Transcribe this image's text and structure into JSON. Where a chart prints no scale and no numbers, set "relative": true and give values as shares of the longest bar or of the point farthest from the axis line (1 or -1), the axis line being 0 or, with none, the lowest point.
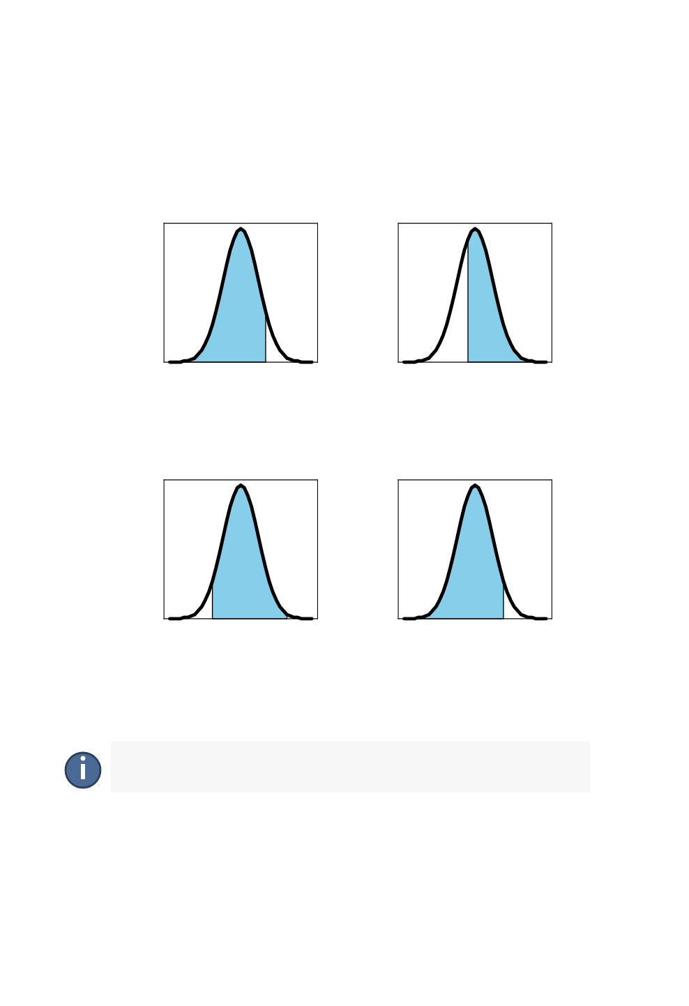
{
  "chart_data": [
    {
      "type": "line",
      "relative": true,
      "categories": [
        null,
        null,
        null,
        null,
        null,
        null,
        null,
        null,
        null,
        null,
        null,
        null,
        null,
        null,
        null,
        null,
        null,
        null,
        null,
        null,
        null,
        null,
        null,
        null,
        null,
        null,
        null,
        null,
        null,
        null,
        null,
        null,
        null,
        null,
        null,
        null,
        null,
        null,
        null,
        null,
        null
      ],
      "series": [
        {
          "color": "#000000",
          "values": [
            0,
            0,
            0,
            0,
            0.01,
            0.01,
            0.02,
            0.03,
            0.06,
            0.09,
            0.14,
            0.2,
            0.28,
            0.38,
            0.49,
            0.61,
            0.73,
            0.84,
            0.92,
            0.98,
            1,
            0.98,
            0.92,
            0.84,
            0.73,
            0.61,
            0.49,
            0.38,
            0.28,
            0.2,
            0.14,
            0.09,
            0.06,
            0.03,
            0.02,
            0.01,
            0.01,
            0,
            0,
            0,
            0
          ],
          "lower": [
            0,
            0,
            0,
            0,
            0,
            0,
            0,
            0,
            0,
            0,
            0,
            0,
            0,
            0,
            0,
            0,
            0,
            0,
            0,
            0,
            0,
            0,
            0,
            0,
            0,
            0,
            0,
            0,
            null,
            null,
            null,
            null,
            null,
            null,
            null,
            null,
            null,
            null,
            null,
            null,
            null
          ],
          "upper": [
            0,
            0,
            0,
            0,
            0.01,
            0.01,
            0.02,
            0.03,
            0.06,
            0.09,
            0.14,
            0.2,
            0.28,
            0.38,
            0.49,
            0.61,
            0.73,
            0.84,
            0.92,
            0.98,
            1,
            0.98,
            0.92,
            0.84,
            0.73,
            0.61,
            0.49,
            0.38,
            null,
            null,
            null,
            null,
            null,
            null,
            null,
            null,
            null,
            null,
            null,
            null,
            null
          ]
        }
      ]
    },
    {
      "type": "line",
      "relative": true,
      "categories": [
        null,
        null,
        null,
        null,
        null,
        null,
        null,
        null,
        null,
        null,
        null,
        null,
        null,
        null,
        null,
        null,
        null,
        null,
        null,
        null,
        null,
        null,
        null,
        null,
        null,
        null,
        null,
        null,
        null,
        null,
        null,
        null,
        null,
        null,
        null,
        null,
        null,
        null,
        null,
        null,
        null
      ],
      "series": [
        {
          "color": "#000000",
          "values": [
            0,
            0,
            0,
            0,
            0.01,
            0.01,
            0.02,
            0.03,
            0.06,
            0.09,
            0.14,
            0.2,
            0.28,
            0.38,
            0.49,
            0.61,
            0.73,
            0.84,
            0.92,
            0.98,
            1,
            0.98,
            0.92,
            0.84,
            0.73,
            0.61,
            0.49,
            0.38,
            0.28,
            0.2,
            0.14,
            0.09,
            0.06,
            0.03,
            0.02,
            0.01,
            0.01,
            0,
            0,
            0,
            0
          ],
          "lower": [
            null,
            null,
            null,
            null,
            null,
            null,
            null,
            null,
            null,
            null,
            null,
            null,
            null,
            null,
            null,
            null,
            null,
            null,
            0,
            0,
            0,
            0,
            0,
            0,
            0,
            0,
            0,
            0,
            0,
            0,
            0,
            0,
            0,
            0,
            0,
            0,
            0,
            0,
            0,
            0,
            0
          ],
          "upper": [
            null,
            null,
            null,
            null,
            null,
            null,
            null,
            null,
            null,
            null,
            null,
            null,
            null,
            null,
            null,
            null,
            null,
            null,
            0.92,
            0.98,
            1,
            0.98,
            0.92,
            0.84,
            0.73,
            0.61,
            0.49,
            0.38,
            0.28,
            0.2,
            0.14,
            0.09,
            0.06,
            0.03,
            0.02,
            0.01,
            0.01,
            0,
            0,
            0,
            0
          ]
        }
      ]
    },
    {
      "type": "line",
      "relative": true,
      "categories": [
        null,
        null,
        null,
        null,
        null,
        null,
        null,
        null,
        null,
        null,
        null,
        null,
        null,
        null,
        null,
        null,
        null,
        null,
        null,
        null,
        null,
        null,
        null,
        null,
        null,
        null,
        null,
        null,
        null,
        null,
        null,
        null,
        null,
        null,
        null,
        null,
        null,
        null,
        null,
        null,
        null
      ],
      "series": [
        {
          "color": "#000000",
          "values": [
            0,
            0,
            0,
            0,
            0.01,
            0.01,
            0.02,
            0.03,
            0.06,
            0.09,
            0.14,
            0.2,
            0.28,
            0.38,
            0.49,
            0.61,
            0.73,
            0.84,
            0.92,
            0.98,
            1,
            0.98,
            0.92,
            0.84,
            0.73,
            0.61,
            0.49,
            0.38,
            0.28,
            0.2,
            0.14,
            0.09,
            0.06,
            0.03,
            0.02,
            0.01,
            0.01,
            0,
            0,
            0,
            0
          ],
          "lower": [
            null,
            null,
            null,
            null,
            null,
            null,
            null,
            null,
            null,
            null,
            null,
            null,
            0,
            0,
            0,
            0,
            0,
            0,
            0,
            0,
            0,
            0,
            0,
            0,
            0,
            0,
            0,
            0,
            0,
            0,
            0,
            0,
            0,
            0,
            null,
            null,
            null,
            null,
            null,
            null,
            null
          ],
          "upper": [
            null,
            null,
            null,
            null,
            null,
            null,
            null,
            null,
            null,
            null,
            null,
            null,
            0.28,
            0.38,
            0.49,
            0.61,
            0.73,
            0.84,
            0.92,
            0.98,
            1,
            0.98,
            0.92,
            0.84,
            0.73,
            0.61,
            0.49,
            0.38,
            0.28,
            0.2,
            0.14,
            0.09,
            0.06,
            0.03,
            null,
            null,
            null,
            null,
            null,
            null,
            null
          ]
        }
      ]
    },
    {
      "type": "line",
      "relative": true,
      "categories": [
        null,
        null,
        null,
        null,
        null,
        null,
        null,
        null,
        null,
        null,
        null,
        null,
        null,
        null,
        null,
        null,
        null,
        null,
        null,
        null,
        null,
        null,
        null,
        null,
        null,
        null,
        null,
        null,
        null,
        null,
        null,
        null,
        null,
        null,
        null,
        null,
        null,
        null,
        null,
        null,
        null
      ],
      "series": [
        {
          "color": "#000000",
          "values": [
            0,
            0,
            0,
            0,
            0.01,
            0.01,
            0.02,
            0.03,
            0.06,
            0.09,
            0.14,
            0.2,
            0.28,
            0.38,
            0.49,
            0.61,
            0.73,
            0.84,
            0.92,
            0.98,
            1,
            0.98,
            0.92,
            0.84,
            0.73,
            0.61,
            0.49,
            0.38,
            0.28,
            0.2,
            0.14,
            0.09,
            0.06,
            0.03,
            0.02,
            0.01,
            0.01,
            0,
            0,
            0,
            0
          ],
          "lower": [
            0,
            0,
            0,
            0,
            0,
            0,
            0,
            0,
            0,
            0,
            0,
            0,
            0,
            0,
            0,
            0,
            0,
            0,
            0,
            0,
            0,
            0,
            0,
            0,
            0,
            0,
            0,
            0,
            0,
            null,
            null,
            null,
            null,
            null,
            null,
            null,
            null,
            null,
            null,
            null,
            null
          ],
          "upper": [
            0,
            0,
            0,
            0,
            0.01,
            0.01,
            0.02,
            0.03,
            0.06,
            0.09,
            0.14,
            0.2,
            0.28,
            0.38,
            0.49,
            0.61,
            0.73,
            0.84,
            0.92,
            0.98,
            1,
            0.98,
            0.92,
            0.84,
            0.73,
            0.61,
            0.49,
            0.38,
            0.28,
            null,
            null,
            null,
            null,
            null,
            null,
            null,
            null,
            null,
            null,
            null,
            null
          ]
        }
      ]
    }
  ]
}
